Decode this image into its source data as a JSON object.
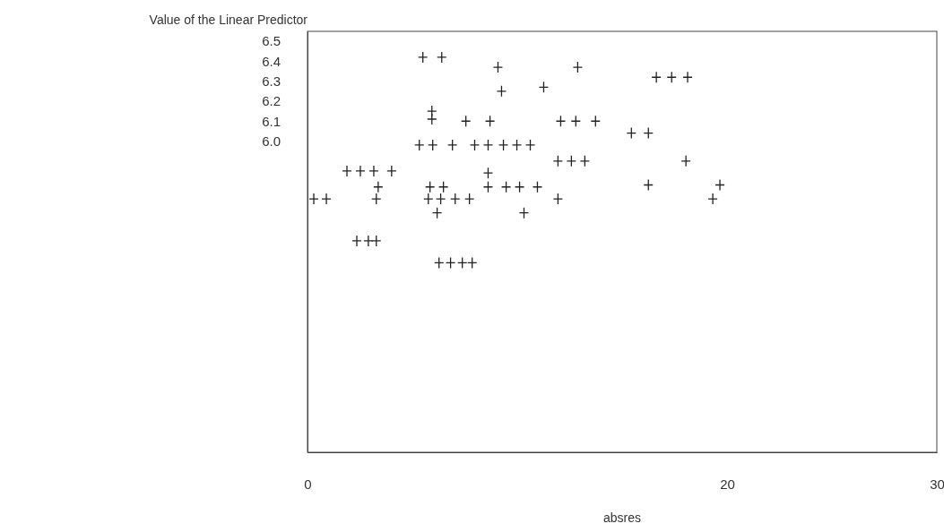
{
  "chart_data": {
    "type": "scatter",
    "ylabel": "Value of the Linear Predictor",
    "xlabel": "absres",
    "xlim": [
      0,
      30
    ],
    "xticks": [
      0,
      20,
      30
    ],
    "ylim": [
      4.44,
      6.55
    ],
    "yticks": [
      {
        "value": 6.0,
        "label": "6.0"
      },
      6.1,
      6.2,
      6.3,
      6.4,
      6.5
    ],
    "marker": "cross",
    "grid": false,
    "series": [
      {
        "color": "#222222",
        "x": [
          5.5,
          6.4,
          9.08,
          12.88,
          16.63,
          17.36,
          18.12,
          9.25,
          11.26,
          5.93,
          12.07,
          12.79,
          13.73,
          15.44,
          16.25,
          5.93,
          7.55,
          8.7,
          5.33,
          5.97,
          6.91,
          7.97,
          8.61,
          9.34,
          9.98,
          10.62,
          11.94,
          12.58,
          13.22,
          18.04,
          1.88,
          2.52,
          3.16,
          4.01,
          3.37,
          5.84,
          6.48,
          8.61,
          8.61,
          9.47,
          10.11,
          10.96,
          16.25,
          19.66,
          19.32,
          0.3,
          0.9,
          3.28,
          5.76,
          6.35,
          7.04,
          7.72,
          11.94,
          6.18,
          10.32,
          2.35,
          2.9,
          3.28,
          6.27,
          6.82,
          7.38,
          7.85
        ],
        "values": [
          6.42,
          6.42,
          6.37,
          6.37,
          6.32,
          6.32,
          6.32,
          6.25,
          6.27,
          6.15,
          6.1,
          6.1,
          6.1,
          6.04,
          6.04,
          6.11,
          6.1,
          6.1,
          5.98,
          5.98,
          5.98,
          5.98,
          5.98,
          5.98,
          5.98,
          5.98,
          5.9,
          5.9,
          5.9,
          5.9,
          5.85,
          5.85,
          5.85,
          5.85,
          5.77,
          5.77,
          5.77,
          5.84,
          5.77,
          5.77,
          5.77,
          5.77,
          5.78,
          5.78,
          5.71,
          5.71,
          5.71,
          5.71,
          5.71,
          5.71,
          5.71,
          5.71,
          5.71,
          5.64,
          5.64,
          5.5,
          5.5,
          5.5,
          5.39,
          5.39,
          5.39,
          5.39
        ]
      }
    ]
  }
}
